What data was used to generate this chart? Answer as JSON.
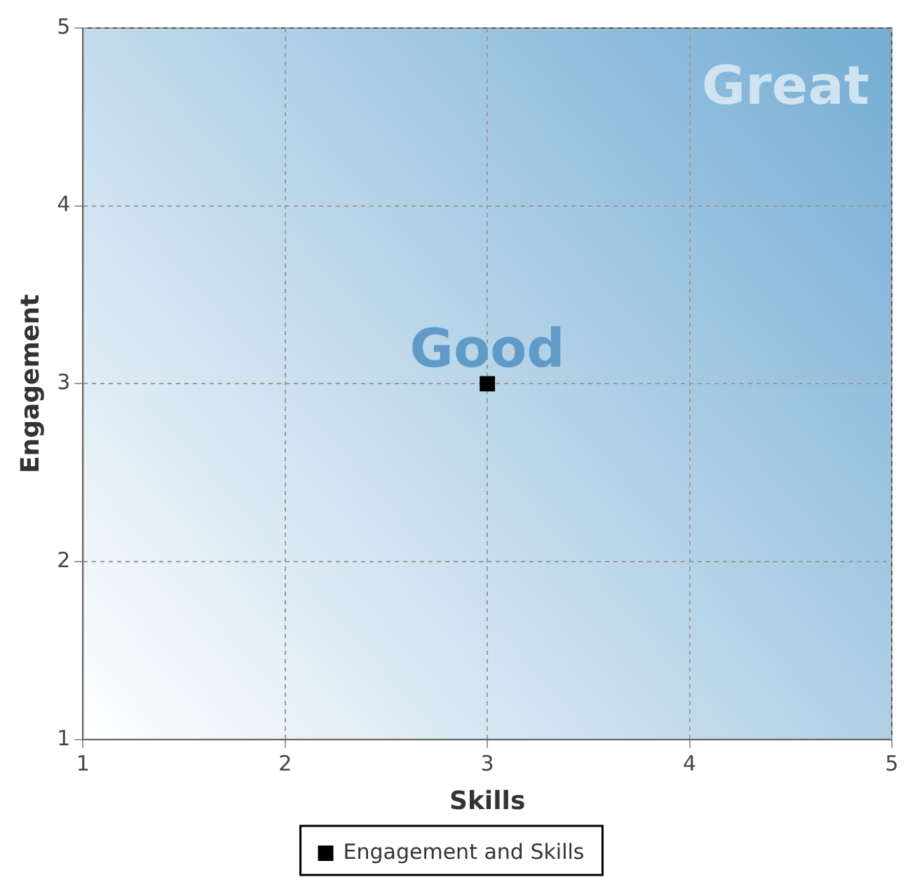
{
  "chart_data": {
    "type": "scatter",
    "xlabel": "Skills",
    "ylabel": "Engagement",
    "series": [
      {
        "name": "Engagement and Skills",
        "color": "#000000",
        "x": [
          3
        ],
        "values": [
          3
        ]
      }
    ],
    "xlim": [
      1,
      5
    ],
    "ylim": [
      1,
      5
    ],
    "xticks": [
      1,
      2,
      3,
      4,
      5
    ],
    "yticks": [
      1,
      2,
      3,
      4,
      5
    ],
    "grid": true,
    "legend": "bottom",
    "marker": "square",
    "annotations": [
      "Great",
      "Good"
    ]
  }
}
